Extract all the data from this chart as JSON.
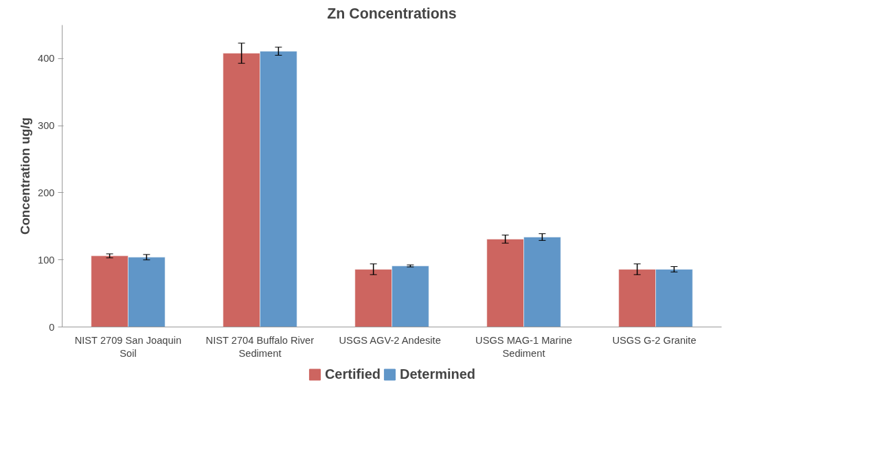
{
  "chart_data": {
    "type": "bar",
    "title": "Zn Concentrations",
    "ylabel": "Concentration ug/g",
    "categories": [
      "NIST 2709 San Joaquin Soil",
      "NIST 2704 Buffalo River Sediment",
      "USGS AGV-2  Andesite",
      "USGS MAG-1 Marine Sediment",
      "USGS G-2  Granite"
    ],
    "series": [
      {
        "name": "Certified",
        "color": "#cd6560",
        "values": [
          106,
          408,
          86,
          131,
          86
        ],
        "errors": [
          3,
          15,
          8,
          6,
          8
        ]
      },
      {
        "name": "Determined",
        "color": "#6096c8",
        "values": [
          104,
          411,
          91,
          134,
          86
        ],
        "errors": [
          4,
          6,
          1.5,
          5,
          4
        ]
      }
    ],
    "ylim": [
      0,
      450
    ],
    "yticks": [
      0,
      100,
      200,
      300,
      400
    ],
    "grid": false,
    "legend": "bottom"
  }
}
